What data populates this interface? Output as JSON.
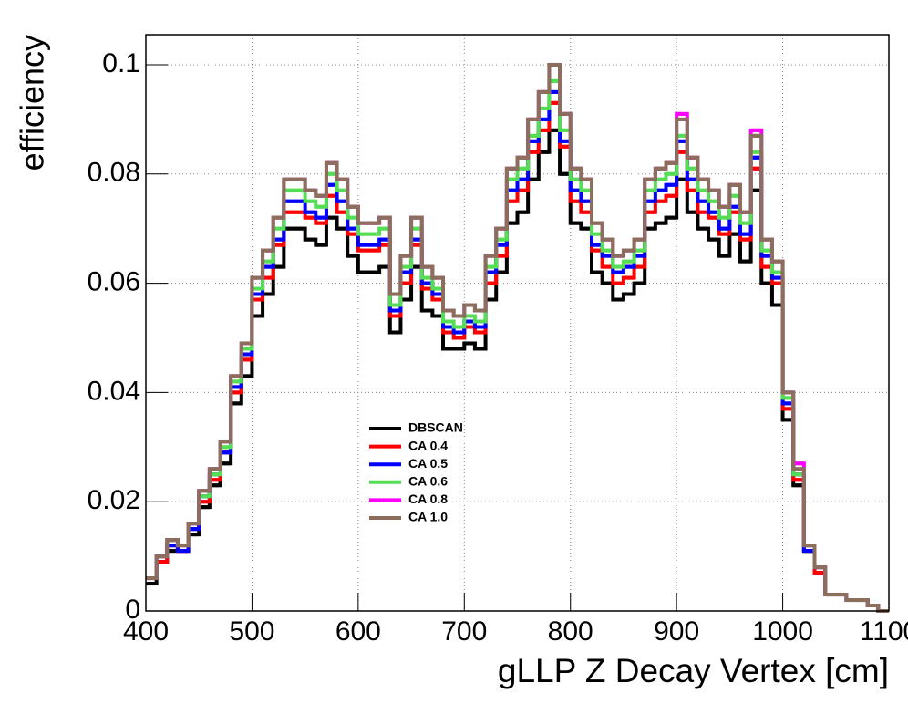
{
  "chart_data": {
    "type": "histogram",
    "xlabel": "gLLP Z Decay Vertex [cm]",
    "ylabel": "efficiency",
    "bins": [
      400,
      410,
      420,
      430,
      440,
      450,
      460,
      470,
      480,
      490,
      500,
      510,
      520,
      530,
      540,
      550,
      560,
      570,
      580,
      590,
      600,
      610,
      620,
      630,
      640,
      650,
      660,
      670,
      680,
      690,
      700,
      710,
      720,
      730,
      740,
      750,
      760,
      770,
      780,
      790,
      800,
      810,
      820,
      830,
      840,
      850,
      860,
      870,
      880,
      890,
      900,
      910,
      920,
      930,
      940,
      950,
      960,
      970,
      980,
      990,
      1000,
      1010,
      1020,
      1030,
      1040,
      1050,
      1060,
      1070,
      1080,
      1090,
      1100
    ],
    "series": [
      {
        "name": "DBSCAN",
        "color": "#000000",
        "values": [
          0.005,
          0.009,
          0.011,
          0.011,
          0.014,
          0.019,
          0.023,
          0.027,
          0.038,
          0.043,
          0.054,
          0.058,
          0.063,
          0.07,
          0.07,
          0.068,
          0.067,
          0.072,
          0.07,
          0.065,
          0.062,
          0.062,
          0.063,
          0.051,
          0.057,
          0.063,
          0.055,
          0.054,
          0.048,
          0.048,
          0.049,
          0.048,
          0.057,
          0.062,
          0.071,
          0.073,
          0.079,
          0.084,
          0.088,
          0.08,
          0.071,
          0.07,
          0.062,
          0.06,
          0.057,
          0.058,
          0.06,
          0.07,
          0.071,
          0.072,
          0.079,
          0.073,
          0.07,
          0.068,
          0.065,
          0.069,
          0.064,
          0.077,
          0.06,
          0.056,
          0.035,
          0.023,
          0.011,
          0.007,
          0.003,
          0.003,
          0.002,
          0.002,
          0.001,
          0.0
        ]
      },
      {
        "name": "CA 0.4",
        "color": "#ff0000",
        "values": [
          0.006,
          0.009,
          0.012,
          0.011,
          0.015,
          0.02,
          0.024,
          0.029,
          0.04,
          0.046,
          0.057,
          0.061,
          0.067,
          0.073,
          0.073,
          0.072,
          0.071,
          0.076,
          0.073,
          0.069,
          0.066,
          0.066,
          0.067,
          0.054,
          0.06,
          0.067,
          0.059,
          0.057,
          0.051,
          0.05,
          0.052,
          0.051,
          0.06,
          0.065,
          0.075,
          0.077,
          0.084,
          0.088,
          0.093,
          0.085,
          0.075,
          0.073,
          0.066,
          0.063,
          0.06,
          0.061,
          0.063,
          0.073,
          0.075,
          0.076,
          0.084,
          0.077,
          0.073,
          0.072,
          0.069,
          0.073,
          0.068,
          0.081,
          0.063,
          0.06,
          0.037,
          0.024,
          0.011,
          0.007,
          0.003,
          0.003,
          0.002,
          0.002,
          0.001,
          0.0
        ]
      },
      {
        "name": "CA 0.5",
        "color": "#0000ff",
        "values": [
          0.006,
          0.01,
          0.012,
          0.011,
          0.015,
          0.021,
          0.025,
          0.029,
          0.041,
          0.047,
          0.058,
          0.063,
          0.068,
          0.075,
          0.075,
          0.073,
          0.072,
          0.078,
          0.075,
          0.07,
          0.067,
          0.067,
          0.068,
          0.055,
          0.062,
          0.068,
          0.06,
          0.058,
          0.052,
          0.051,
          0.053,
          0.052,
          0.062,
          0.067,
          0.077,
          0.079,
          0.086,
          0.09,
          0.095,
          0.086,
          0.077,
          0.075,
          0.067,
          0.065,
          0.062,
          0.063,
          0.065,
          0.075,
          0.077,
          0.078,
          0.086,
          0.079,
          0.075,
          0.073,
          0.07,
          0.074,
          0.069,
          0.083,
          0.065,
          0.061,
          0.038,
          0.025,
          0.011,
          0.008,
          0.003,
          0.003,
          0.002,
          0.002,
          0.001,
          0.0
        ]
      },
      {
        "name": "CA 0.6",
        "color": "#55dd55",
        "values": [
          0.006,
          0.01,
          0.013,
          0.012,
          0.016,
          0.021,
          0.025,
          0.03,
          0.042,
          0.048,
          0.059,
          0.064,
          0.07,
          0.077,
          0.077,
          0.075,
          0.074,
          0.08,
          0.077,
          0.072,
          0.069,
          0.069,
          0.07,
          0.056,
          0.063,
          0.07,
          0.061,
          0.059,
          0.053,
          0.052,
          0.054,
          0.053,
          0.063,
          0.068,
          0.079,
          0.081,
          0.087,
          0.092,
          0.097,
          0.088,
          0.079,
          0.077,
          0.069,
          0.066,
          0.063,
          0.064,
          0.066,
          0.077,
          0.079,
          0.08,
          0.087,
          0.081,
          0.077,
          0.075,
          0.072,
          0.076,
          0.071,
          0.084,
          0.066,
          0.062,
          0.039,
          0.025,
          0.012,
          0.008,
          0.003,
          0.003,
          0.002,
          0.002,
          0.001,
          0.0
        ]
      },
      {
        "name": "CA 0.8",
        "color": "#ff00ff",
        "values": [
          0.006,
          0.01,
          0.013,
          0.012,
          0.016,
          0.022,
          0.026,
          0.031,
          0.043,
          0.049,
          0.061,
          0.066,
          0.072,
          0.079,
          0.079,
          0.077,
          0.076,
          0.082,
          0.079,
          0.074,
          0.071,
          0.071,
          0.072,
          0.058,
          0.065,
          0.072,
          0.063,
          0.061,
          0.055,
          0.054,
          0.056,
          0.055,
          0.065,
          0.07,
          0.081,
          0.083,
          0.09,
          0.095,
          0.1,
          0.091,
          0.081,
          0.079,
          0.071,
          0.068,
          0.065,
          0.066,
          0.068,
          0.079,
          0.081,
          0.082,
          0.091,
          0.083,
          0.079,
          0.077,
          0.074,
          0.078,
          0.073,
          0.088,
          0.068,
          0.064,
          0.04,
          0.027,
          0.012,
          0.008,
          0.003,
          0.003,
          0.002,
          0.002,
          0.001,
          0.0
        ]
      },
      {
        "name": "CA 1.0",
        "color": "#8b6e5c",
        "values": [
          0.006,
          0.01,
          0.013,
          0.012,
          0.016,
          0.022,
          0.026,
          0.031,
          0.043,
          0.049,
          0.061,
          0.066,
          0.072,
          0.079,
          0.079,
          0.077,
          0.076,
          0.082,
          0.079,
          0.074,
          0.071,
          0.071,
          0.072,
          0.058,
          0.065,
          0.072,
          0.063,
          0.061,
          0.055,
          0.054,
          0.056,
          0.055,
          0.065,
          0.07,
          0.081,
          0.083,
          0.09,
          0.095,
          0.1,
          0.091,
          0.081,
          0.079,
          0.071,
          0.068,
          0.065,
          0.066,
          0.068,
          0.079,
          0.081,
          0.082,
          0.09,
          0.083,
          0.079,
          0.077,
          0.074,
          0.078,
          0.073,
          0.087,
          0.068,
          0.064,
          0.04,
          0.026,
          0.012,
          0.008,
          0.003,
          0.003,
          0.002,
          0.002,
          0.001,
          0.0
        ]
      }
    ],
    "xlim": [
      400,
      1100
    ],
    "xticks": [
      400,
      500,
      600,
      700,
      800,
      900,
      1000,
      1100
    ],
    "ylim": [
      0,
      0.1055
    ],
    "yticks": [
      0,
      0.02,
      0.04,
      0.06,
      0.08,
      0.1
    ],
    "grid": true,
    "legend": "lower-left"
  }
}
